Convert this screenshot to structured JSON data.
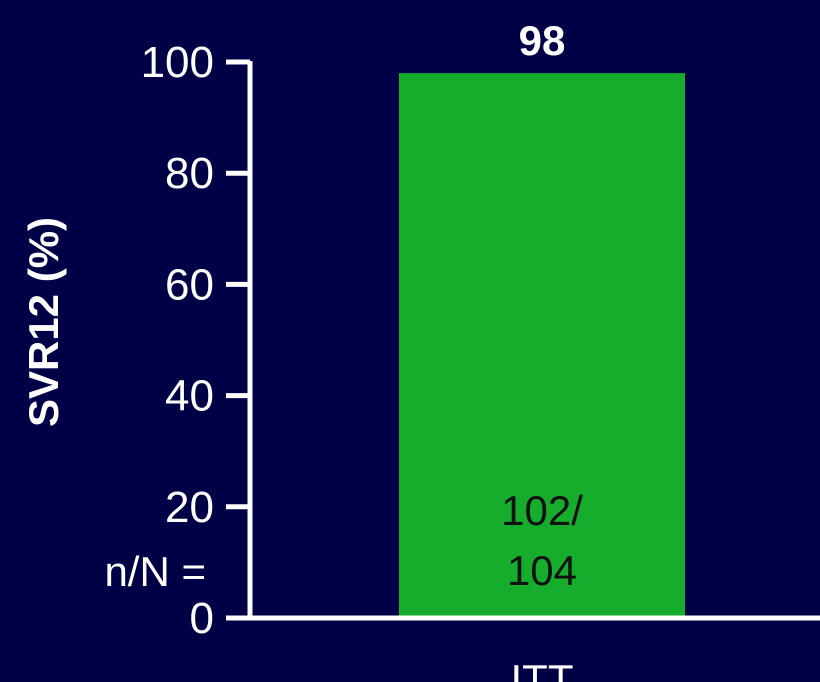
{
  "chart_data": {
    "type": "bar",
    "categories": [
      "ITT"
    ],
    "values": [
      98
    ],
    "value_labels": [
      "98"
    ],
    "bar_annotations": [
      [
        "102/",
        "104"
      ]
    ],
    "row_label": "n/N =",
    "ylabel": "SVR12 (%)",
    "xlabel": "",
    "ylim": [
      0,
      100
    ],
    "yticks": [
      0,
      20,
      40,
      60,
      80,
      100
    ],
    "grid": false,
    "legend": "none"
  },
  "colors": {
    "background": "#000046",
    "bar": "#16AD2D",
    "axis": "#FFFFFF",
    "text": "#FFFFFF",
    "bar_text": "#111111"
  }
}
